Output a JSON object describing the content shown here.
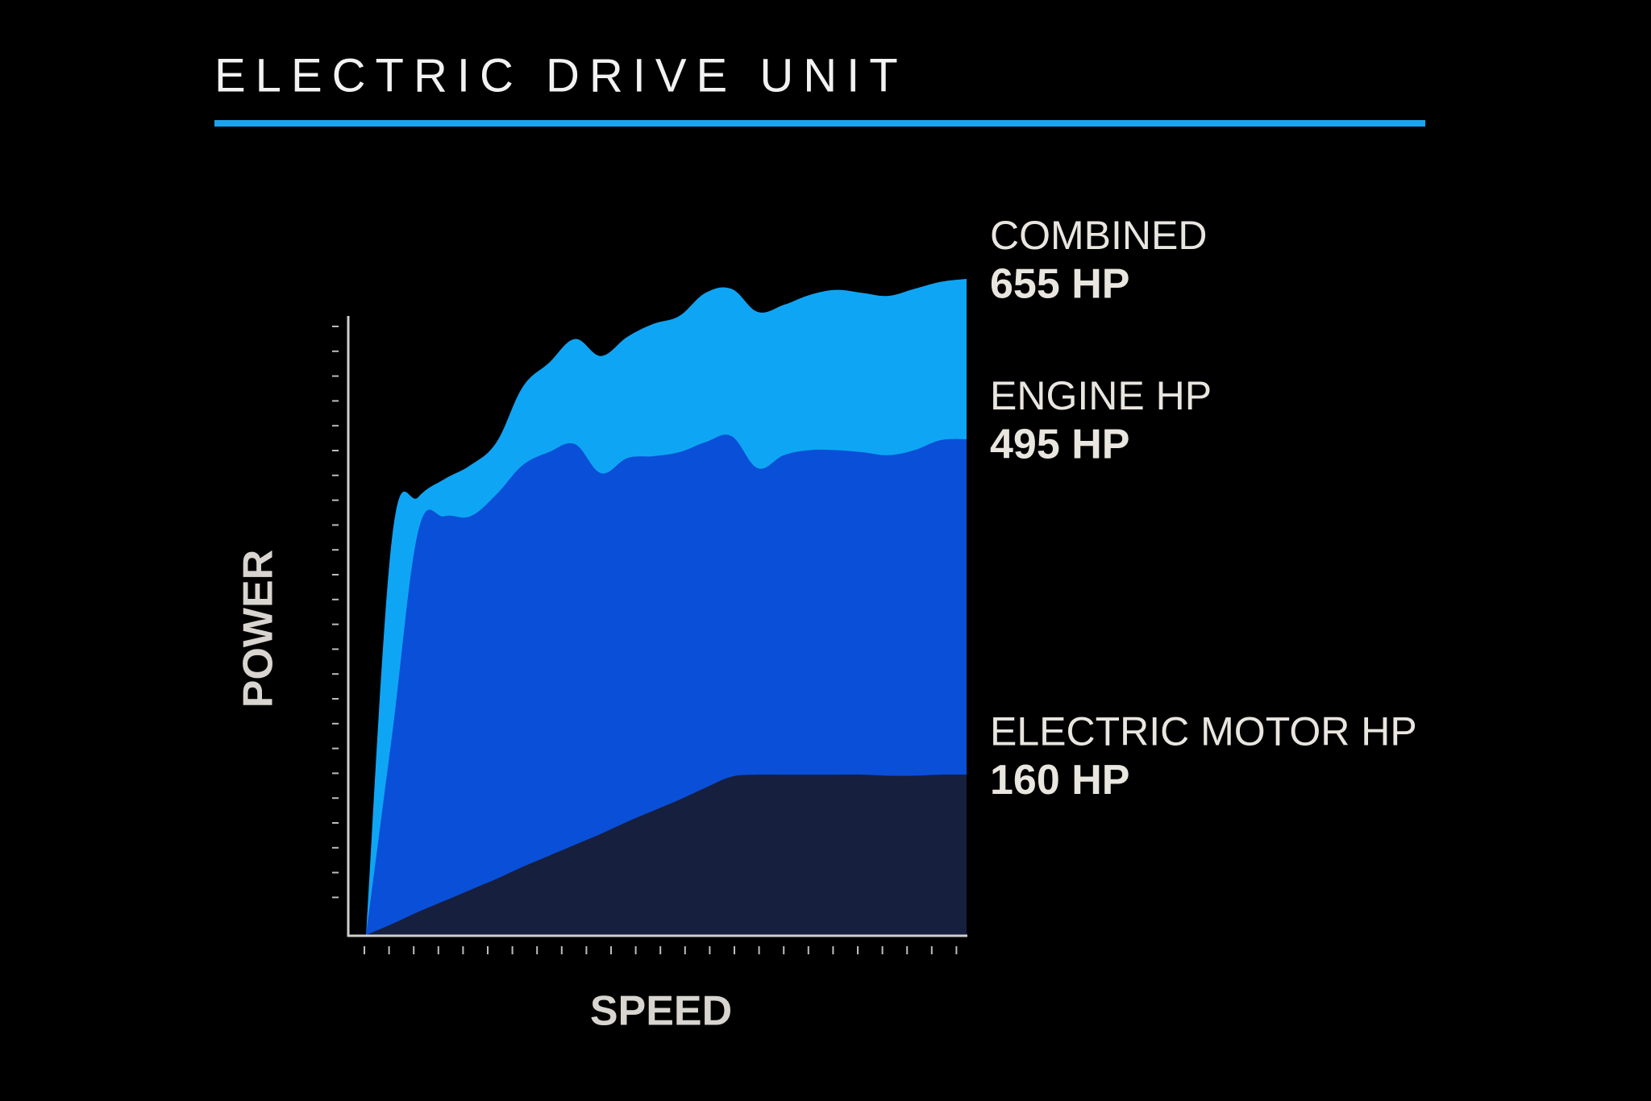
{
  "chart_data": {
    "type": "area",
    "title": "ELECTRIC DRIVE UNIT",
    "x_label": "SPEED",
    "y_label": "POWER",
    "ylim": [
      0,
      655
    ],
    "series": [
      {
        "name": "COMBINED",
        "color": "#0ea6f4",
        "values": [
          0,
          397,
          437,
          455,
          469,
          492,
          547,
          571,
          595,
          578,
          597,
          610,
          618,
          641,
          645,
          622,
          629,
          639,
          644,
          641,
          638,
          645,
          652,
          655
        ],
        "value_labels": [
          null,
          null,
          null,
          null,
          null,
          null,
          null,
          null,
          null,
          null,
          null,
          null,
          null,
          null,
          null,
          null,
          null,
          null,
          null,
          null,
          null,
          null,
          null,
          "655 HP"
        ]
      },
      {
        "name": "ENGINE HP",
        "color": "#0a4fd8",
        "values": [
          0,
          200,
          403,
          418,
          418,
          440,
          469,
          482,
          490,
          461,
          476,
          478,
          482,
          492,
          498,
          466,
          479,
          484,
          484,
          482,
          479,
          484,
          494,
          495
        ],
        "value_labels": [
          null,
          null,
          null,
          null,
          null,
          null,
          null,
          null,
          null,
          null,
          null,
          null,
          null,
          null,
          null,
          null,
          null,
          null,
          null,
          null,
          null,
          null,
          null,
          "495 HP"
        ]
      },
      {
        "name": "ELECTRIC MOTOR HP",
        "color": "#161f3e",
        "values": [
          0,
          11,
          23,
          34,
          45,
          56,
          68,
          79,
          90,
          101,
          113,
          124,
          135,
          147,
          158,
          160,
          160,
          160,
          160,
          160,
          159,
          159,
          160,
          160
        ],
        "value_labels": [
          null,
          null,
          null,
          null,
          null,
          null,
          null,
          null,
          null,
          null,
          null,
          null,
          null,
          null,
          null,
          null,
          null,
          null,
          null,
          null,
          null,
          null,
          null,
          "160 HP"
        ]
      }
    ]
  }
}
